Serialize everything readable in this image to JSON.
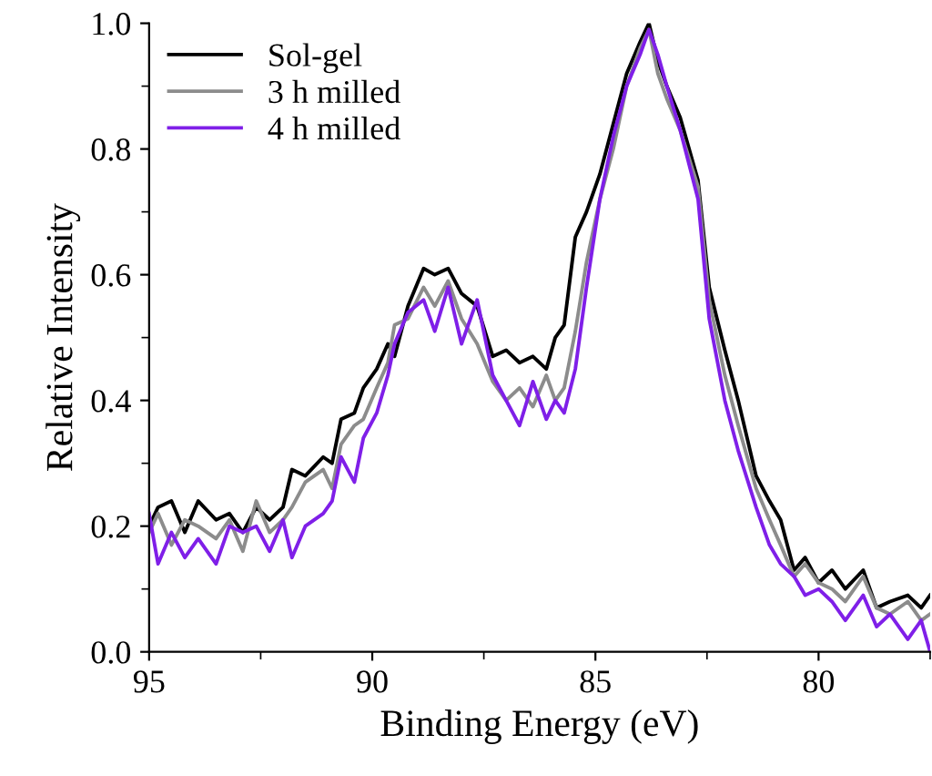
{
  "chart_data": {
    "type": "line",
    "xlabel": "Binding Energy (eV)",
    "ylabel": "Relative Intensity",
    "xlim": [
      95,
      77.5
    ],
    "xticks": [
      95,
      90,
      85,
      80
    ],
    "ylim": [
      0,
      1.0
    ],
    "yticks": [
      {
        "value": 0,
        "label": "0.0"
      },
      {
        "value": 0.2,
        "label": "0.2"
      },
      {
        "value": 0.4,
        "label": "0.4"
      },
      {
        "value": 0.6,
        "label": "0.6"
      },
      {
        "value": 0.8,
        "label": "0.8"
      },
      {
        "value": 1.0,
        "label": "1.0"
      }
    ],
    "legend": "top left",
    "grid": false,
    "series": [
      {
        "name": "Sol-gel",
        "color": "#000000",
        "x": [
          95,
          94.8,
          94.5,
          94.2,
          93.9,
          93.5,
          93.2,
          92.9,
          92.6,
          92.3,
          92.0,
          91.8,
          91.5,
          91.1,
          90.9,
          90.7,
          90.4,
          90.2,
          89.9,
          89.65,
          89.5,
          89.2,
          88.85,
          88.6,
          88.3,
          88.0,
          87.65,
          87.3,
          87.0,
          86.7,
          86.4,
          86.1,
          85.9,
          85.7,
          85.45,
          85.2,
          84.9,
          84.6,
          84.3,
          84.0,
          83.8,
          83.6,
          83.4,
          83.1,
          82.7,
          82.45,
          82.1,
          81.8,
          81.4,
          81.1,
          80.85,
          80.55,
          80.3,
          80.0,
          79.7,
          79.4,
          79.0,
          78.7,
          78.4,
          78.0,
          77.7,
          77.5
        ],
        "values": [
          0.2,
          0.23,
          0.24,
          0.19,
          0.24,
          0.21,
          0.22,
          0.19,
          0.23,
          0.21,
          0.23,
          0.29,
          0.28,
          0.31,
          0.3,
          0.37,
          0.38,
          0.42,
          0.45,
          0.49,
          0.47,
          0.55,
          0.61,
          0.6,
          0.61,
          0.57,
          0.55,
          0.47,
          0.48,
          0.46,
          0.47,
          0.45,
          0.5,
          0.52,
          0.66,
          0.7,
          0.76,
          0.84,
          0.92,
          0.97,
          1.0,
          0.94,
          0.9,
          0.85,
          0.75,
          0.58,
          0.48,
          0.4,
          0.28,
          0.24,
          0.21,
          0.13,
          0.15,
          0.11,
          0.13,
          0.1,
          0.13,
          0.07,
          0.08,
          0.09,
          0.07,
          0.09
        ]
      },
      {
        "name": "3 h milled",
        "color": "#8c8c8c",
        "x": [
          95,
          94.8,
          94.5,
          94.2,
          93.9,
          93.5,
          93.2,
          92.9,
          92.6,
          92.3,
          92.0,
          91.8,
          91.5,
          91.1,
          90.9,
          90.7,
          90.4,
          90.2,
          89.9,
          89.65,
          89.5,
          89.2,
          88.85,
          88.6,
          88.3,
          88.0,
          87.65,
          87.3,
          87.0,
          86.7,
          86.4,
          86.1,
          85.9,
          85.7,
          85.45,
          85.2,
          84.9,
          84.6,
          84.3,
          84.0,
          83.8,
          83.6,
          83.4,
          83.1,
          82.7,
          82.45,
          82.1,
          81.8,
          81.4,
          81.1,
          80.85,
          80.55,
          80.3,
          80.0,
          79.7,
          79.4,
          79.0,
          78.7,
          78.4,
          78.0,
          77.7,
          77.5
        ],
        "values": [
          0.19,
          0.22,
          0.17,
          0.21,
          0.2,
          0.18,
          0.21,
          0.16,
          0.24,
          0.19,
          0.21,
          0.23,
          0.27,
          0.29,
          0.26,
          0.33,
          0.36,
          0.37,
          0.42,
          0.46,
          0.52,
          0.53,
          0.58,
          0.55,
          0.59,
          0.53,
          0.49,
          0.43,
          0.4,
          0.42,
          0.39,
          0.44,
          0.4,
          0.42,
          0.51,
          0.62,
          0.72,
          0.8,
          0.9,
          0.96,
          0.99,
          0.92,
          0.88,
          0.83,
          0.74,
          0.56,
          0.44,
          0.36,
          0.26,
          0.21,
          0.17,
          0.12,
          0.14,
          0.11,
          0.1,
          0.08,
          0.12,
          0.07,
          0.06,
          0.08,
          0.05,
          0.06
        ]
      },
      {
        "name": "4 h milled",
        "color": "#7f1fe8",
        "x": [
          95,
          94.8,
          94.5,
          94.2,
          93.9,
          93.5,
          93.2,
          92.9,
          92.6,
          92.3,
          92.0,
          91.8,
          91.5,
          91.1,
          90.9,
          90.7,
          90.4,
          90.2,
          89.9,
          89.65,
          89.5,
          89.2,
          88.85,
          88.6,
          88.3,
          88.0,
          87.65,
          87.3,
          87.0,
          86.7,
          86.4,
          86.1,
          85.9,
          85.7,
          85.45,
          85.2,
          84.9,
          84.6,
          84.3,
          84.0,
          83.8,
          83.6,
          83.4,
          83.1,
          82.7,
          82.45,
          82.1,
          81.8,
          81.4,
          81.1,
          80.85,
          80.55,
          80.3,
          80.0,
          79.7,
          79.4,
          79.0,
          78.7,
          78.4,
          78.0,
          77.7,
          77.5
        ],
        "values": [
          0.22,
          0.14,
          0.19,
          0.15,
          0.18,
          0.14,
          0.2,
          0.19,
          0.2,
          0.16,
          0.21,
          0.15,
          0.2,
          0.22,
          0.24,
          0.31,
          0.27,
          0.34,
          0.38,
          0.44,
          0.49,
          0.54,
          0.56,
          0.51,
          0.58,
          0.49,
          0.56,
          0.44,
          0.4,
          0.36,
          0.43,
          0.37,
          0.4,
          0.38,
          0.45,
          0.58,
          0.72,
          0.82,
          0.9,
          0.95,
          0.99,
          0.95,
          0.9,
          0.83,
          0.72,
          0.53,
          0.4,
          0.32,
          0.23,
          0.17,
          0.14,
          0.12,
          0.09,
          0.1,
          0.08,
          0.05,
          0.09,
          0.04,
          0.06,
          0.02,
          0.05,
          0.0
        ]
      }
    ]
  }
}
